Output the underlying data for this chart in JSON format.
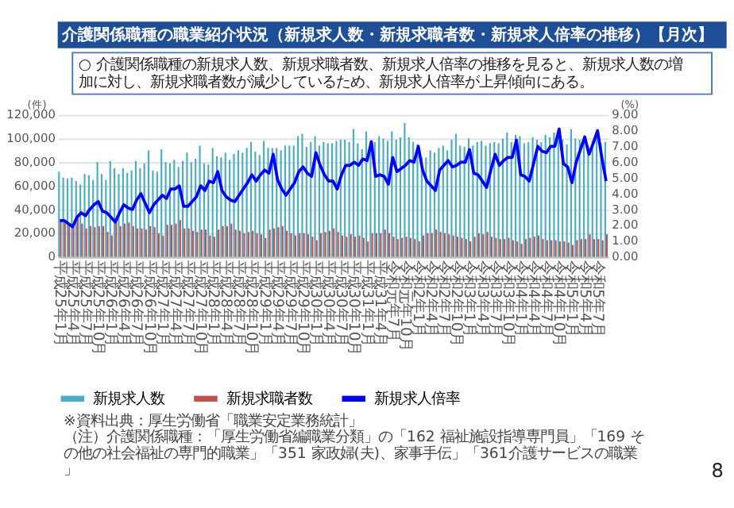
{
  "chart_data": {
    "type": "bar",
    "title": "介護関係職種の職業紹介状況（新規求人数・新規求職者数・新規求人倍率の推移）【月次】",
    "ylabel": "(件)",
    "y2label": "(%)",
    "annotations": [
      "○ 介護関係職種の新規求人数、新規求職者数、新規求人倍率の推移を見ると、新規求人数の増加に対し、新規求職者数が減少しているため、新規求人倍率が上昇傾向にある。",
      "※資料出典：厚生労働省「職業安定業務統計」",
      "（注）介護関係職種：「厚生労働省編職業分類」の「162 福祉施設指導専門員」「169 その他の社会福祉の専門的職業」「351 家政婦(夫)、家事手伝」「361介護サービスの職業」",
      "8"
    ],
    "categories": [
      "平成25年1月",
      null,
      null,
      "平成25年4月",
      null,
      null,
      "平成25年7月",
      null,
      null,
      "平成25年10月",
      null,
      null,
      "平成26年1月",
      null,
      null,
      "平成26年4月",
      null,
      null,
      "平成26年7月",
      null,
      null,
      "平成26年10月",
      null,
      null,
      "平成27年1月",
      null,
      null,
      "平成27年4月",
      null,
      null,
      "平成27年7月",
      null,
      null,
      "平成27年10月",
      null,
      null,
      "平成28年1月",
      null,
      null,
      "平成28年4月",
      null,
      null,
      "平成28年7月",
      null,
      null,
      "平成28年10月",
      null,
      null,
      "平成29年1月",
      null,
      null,
      "平成29年4月",
      null,
      null,
      "平成29年7月",
      null,
      null,
      "平成29年10月",
      null,
      null,
      "平成30年1月",
      null,
      null,
      "平成30年4月",
      null,
      null,
      "平成30年7月",
      null,
      null,
      "平成30年10月",
      null,
      null,
      "平成31年1月",
      null,
      null,
      "平成31年4月",
      null,
      null,
      "令和元年7月",
      null,
      null,
      "令和元年10月",
      null,
      null,
      "令和2年1月",
      null,
      null,
      "令和2年4月",
      null,
      null,
      "令和2年7月",
      null,
      null,
      "令和2年10月",
      null,
      null,
      "令和3年1月",
      null,
      null,
      "令和3年4月",
      null,
      null,
      "令和3年7月",
      null,
      null,
      "令和3年10月",
      null,
      null,
      "令和4年1月",
      null,
      null,
      "令和4年4月",
      null,
      null,
      "令和4年7月",
      null,
      null,
      "令和4年10月",
      null,
      null,
      "令和5年1月",
      null,
      null,
      "令和5年4月",
      null,
      null,
      "令和5年7月",
      null,
      null
    ],
    "series": [
      {
        "name": "新規求人数",
        "color": "#4bacc6",
        "values": [
          72000,
          67000,
          66000,
          67000,
          64000,
          61000,
          70000,
          69000,
          65000,
          80000,
          70000,
          65000,
          81000,
          75000,
          70000,
          75000,
          71000,
          73000,
          81000,
          75000,
          79000,
          90000,
          73000,
          72000,
          91000,
          80000,
          79000,
          82000,
          76000,
          81000,
          88000,
          80000,
          83000,
          94000,
          79000,
          78000,
          92000,
          85000,
          84000,
          88000,
          82000,
          87000,
          90000,
          88000,
          92000,
          97000,
          89000,
          86000,
          98000,
          92000,
          92000,
          92000,
          90000,
          94000,
          94000,
          94000,
          102000,
          104000,
          93000,
          97000,
          102000,
          94000,
          97000,
          96000,
          96000,
          98000,
          99000,
          99000,
          97000,
          108000,
          96000,
          91000,
          106000,
          98000,
          97000,
          102000,
          100000,
          98000,
          106000,
          99000,
          101000,
          113000,
          101000,
          97000,
          95000,
          84000,
          84000,
          90000,
          88000,
          92000,
          94000,
          90000,
          99000,
          104000,
          94000,
          93000,
          100000,
          94000,
          97000,
          98000,
          94000,
          96000,
          97000,
          96000,
          100000,
          105000,
          97000,
          103000,
          102000,
          96000,
          97000,
          101000,
          99000,
          97000,
          103000,
          101000,
          105000,
          106000,
          99000,
          95000,
          108000,
          100000,
          99000,
          98000,
          94000,
          98000,
          104000,
          96000,
          97000
        ]
      },
      {
        "name": "新規求職者数",
        "color": "#c0504d",
        "values": [
          30000,
          29000,
          27000,
          25000,
          35000,
          28000,
          24000,
          26000,
          25000,
          26000,
          26000,
          21000,
          18000,
          29000,
          26000,
          28000,
          29000,
          26000,
          24000,
          24000,
          23000,
          26000,
          25000,
          20000,
          18000,
          27000,
          27000,
          28000,
          31000,
          24000,
          24000,
          22000,
          21000,
          23000,
          23000,
          18000,
          17000,
          23000,
          26000,
          26000,
          28000,
          23000,
          22000,
          20000,
          21000,
          22000,
          20000,
          19000,
          16000,
          23000,
          24000,
          25000,
          26000,
          22000,
          20000,
          18000,
          20000,
          20000,
          19000,
          17000,
          14000,
          20000,
          21000,
          22000,
          24000,
          21000,
          18000,
          17000,
          19000,
          17000,
          18000,
          16000,
          13000,
          20000,
          20000,
          20000,
          23000,
          20000,
          17000,
          15000,
          16000,
          17000,
          16000,
          15000,
          13000,
          18000,
          20000,
          20000,
          23000,
          21000,
          20000,
          19000,
          18000,
          17000,
          16000,
          15000,
          13000,
          17000,
          20000,
          19000,
          21000,
          17000,
          16000,
          15000,
          15000,
          16000,
          14000,
          13000,
          11000,
          15000,
          16000,
          17000,
          18000,
          15000,
          14000,
          14000,
          14000,
          13000,
          13000,
          12000,
          10000,
          14000,
          15000,
          15000,
          19000,
          15000,
          15000,
          14000,
          19000
        ]
      },
      {
        "name": "新規求人倍率",
        "type": "line",
        "axis": "y2",
        "color": "#0000ff",
        "values": [
          2.3,
          2.3,
          2.1,
          1.9,
          2.5,
          2.8,
          2.6,
          3.0,
          3.3,
          3.5,
          2.9,
          2.8,
          2.5,
          2.2,
          2.8,
          3.3,
          3.1,
          3.0,
          3.6,
          4.0,
          3.4,
          2.8,
          3.3,
          3.6,
          3.9,
          3.7,
          4.3,
          4.3,
          4.5,
          3.2,
          3.2,
          3.5,
          3.8,
          4.5,
          4.2,
          4.8,
          4.7,
          5.4,
          4.2,
          3.8,
          3.6,
          3.5,
          3.9,
          4.3,
          4.7,
          5.2,
          4.8,
          5.2,
          5.5,
          5.3,
          6.5,
          4.9,
          4.3,
          3.9,
          4.3,
          4.7,
          5.4,
          5.7,
          5.3,
          5.1,
          6.6,
          5.8,
          5.2,
          4.8,
          4.8,
          4.3,
          5.2,
          5.8,
          5.8,
          6.0,
          5.8,
          6.2,
          6.1,
          7.3,
          5.1,
          5.2,
          5.1,
          4.6,
          6.3,
          5.4,
          5.6,
          5.8,
          6.1,
          6.0,
          7.0,
          5.5,
          4.8,
          4.5,
          4.2,
          5.5,
          5.8,
          6.1,
          5.7,
          5.8,
          6.0,
          6.0,
          6.8,
          5.3,
          5.2,
          4.8,
          4.4,
          5.5,
          6.5,
          5.8,
          6.1,
          6.3,
          6.3,
          7.4,
          5.2,
          5.1,
          4.8,
          5.9,
          7.0,
          6.7,
          6.6,
          7.0,
          7.0,
          8.1,
          5.9,
          5.7,
          4.7,
          6.0,
          6.8,
          7.6,
          6.5,
          7.2,
          8.0,
          6.3,
          4.8
        ]
      }
    ],
    "ylim": [
      0,
      120000
    ],
    "yticks": [
      {
        "value": 0,
        "label": "0"
      },
      {
        "value": 20000,
        "label": "20,000"
      },
      {
        "value": 40000,
        "label": "40,000"
      },
      {
        "value": 60000,
        "label": "60,000"
      },
      {
        "value": 80000,
        "label": "80,000"
      },
      {
        "value": 100000,
        "label": "100,000"
      },
      {
        "value": 120000,
        "label": "120,000"
      }
    ],
    "y2lim": [
      0,
      9
    ],
    "y2ticks": [
      {
        "value": 0,
        "label": "0.00"
      },
      {
        "value": 1,
        "label": "1.00"
      },
      {
        "value": 2,
        "label": "2.00"
      },
      {
        "value": 3,
        "label": "3.00"
      },
      {
        "value": 4,
        "label": "4.00"
      },
      {
        "value": 5,
        "label": "5.00"
      },
      {
        "value": 6,
        "label": "6.00"
      },
      {
        "value": 7,
        "label": "7.00"
      },
      {
        "value": 8,
        "label": "8.00"
      },
      {
        "value": 9,
        "label": "9.00"
      }
    ],
    "grid": "y",
    "legend": "bottom",
    "line_style": "solid",
    "marker": "none"
  }
}
